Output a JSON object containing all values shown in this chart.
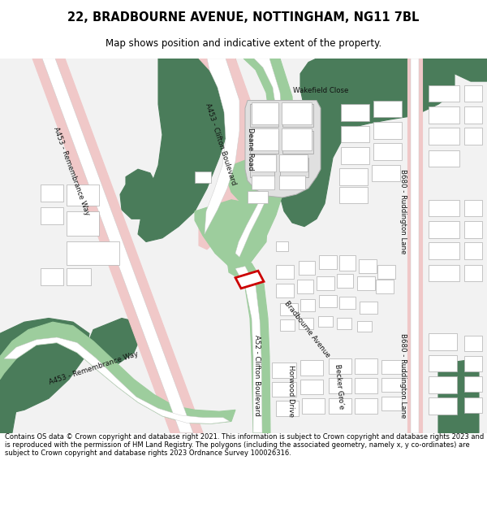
{
  "title": "22, BRADBOURNE AVENUE, NOTTINGHAM, NG11 7BL",
  "subtitle": "Map shows position and indicative extent of the property.",
  "footer": "Contains OS data © Crown copyright and database right 2021. This information is subject to Crown copyright and database rights 2023 and is reproduced with the permission of HM Land Registry. The polygons (including the associated geometry, namely x, y co-ordinates) are subject to Crown copyright and database rights 2023 Ordnance Survey 100026316.",
  "bg_color": "#ffffff",
  "map_bg": "#f2f2f2",
  "green_dark": "#4a7c5a",
  "green_light": "#9dcd9d",
  "road_pink": "#f0c8c8",
  "road_white": "#ffffff",
  "road_outline": "#c8c8c8",
  "building_fill": "#e0e0e0",
  "building_outline": "#b0b0b0",
  "highlight_red": "#cc0000",
  "text_color": "#000000",
  "label_color": "#333333"
}
